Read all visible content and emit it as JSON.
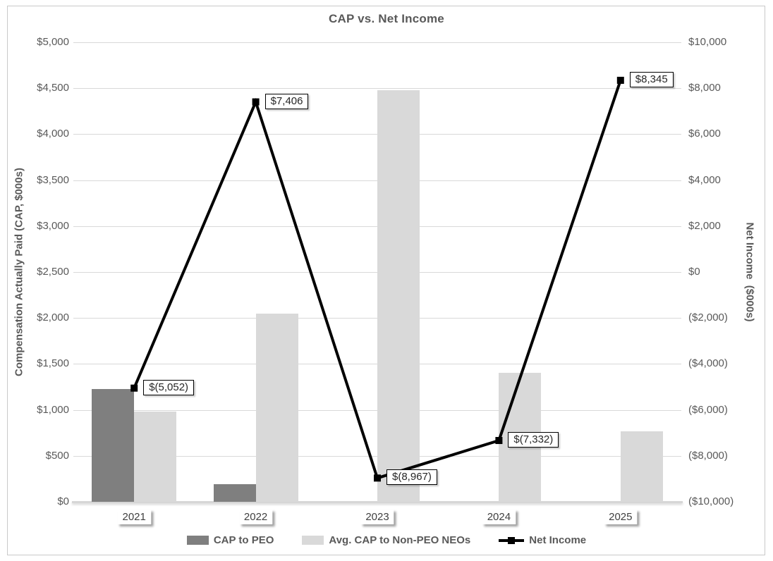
{
  "title": "CAP vs. Net Income",
  "colors": {
    "cap_to_peo_bar": "#7f7f7f",
    "non_peo_bar": "#d9d9d9",
    "net_income_line": "#000000",
    "gridline": "#d9d9d9",
    "text_gray": "#595959",
    "frame_border": "#c9c9c9"
  },
  "chart_data": {
    "type": "bar",
    "title": "CAP vs. Net Income",
    "categories": [
      "2021",
      "2022",
      "2023",
      "2024",
      "2025"
    ],
    "series": [
      {
        "name": "CAP to PEO",
        "type": "bar",
        "axis": "left",
        "values": [
          1230,
          190,
          0,
          0,
          0
        ],
        "color": "#7f7f7f"
      },
      {
        "name": "Avg. CAP to Non-PEO NEOs",
        "type": "bar",
        "axis": "left",
        "values": [
          985,
          2045,
          4475,
          1400,
          770
        ],
        "color": "#d9d9d9"
      },
      {
        "name": "Net Income",
        "type": "line",
        "axis": "right",
        "values": [
          -5052,
          7406,
          -8967,
          -7332,
          8345
        ],
        "labels": [
          "$(5,052)",
          "$7,406",
          "$(8,967)",
          "$(7,332)",
          "$8,345"
        ],
        "color": "#000000"
      }
    ],
    "left_axis": {
      "label": "Compensation Actually Paid (CAP, $000s)",
      "min": 0,
      "max": 5000,
      "step": 500,
      "ticks": [
        "$5,000",
        "$4,500",
        "$4,000",
        "$3,500",
        "$3,000",
        "$2,500",
        "$2,000",
        "$1,500",
        "$1,000",
        "$500",
        "$0"
      ]
    },
    "right_axis": {
      "label": "Net Income  ($000s)",
      "min": -10000,
      "max": 10000,
      "step": 2000,
      "ticks": [
        "$10,000",
        "$8,000",
        "$6,000",
        "$4,000",
        "$2,000",
        "$0",
        "($2,000)",
        "($4,000)",
        "($6,000)",
        "($8,000)",
        "($10,000)"
      ]
    },
    "grid": true,
    "legend_position": "bottom"
  }
}
